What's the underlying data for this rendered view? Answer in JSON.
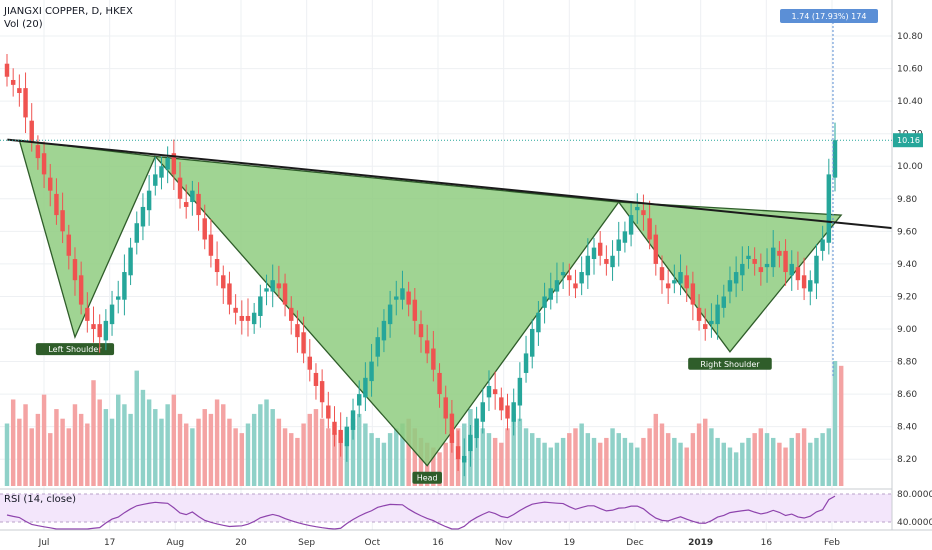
{
  "header": {
    "symbol": "JIANGXI COPPER, D, HKEX",
    "volume_label": "Vol (20)",
    "measure_badge": "1.74 (17.93%) 174",
    "last_price": "10.16"
  },
  "rsi": {
    "label": "RSI (14, close)",
    "levels": [
      "80.0000",
      "40.0000"
    ]
  },
  "colors": {
    "up": "#26a69a",
    "down": "#ef5350",
    "vol_up": "#8fd1c8",
    "vol_down": "#f4a3a3",
    "pattern_fill": "#8fcc80",
    "pattern_stroke": "#2f5d2a",
    "neckline": "#1b1b1b",
    "badge": "#5b8fd6",
    "price_tag": "#26a69a",
    "rsi_bg": "#f3e6fb",
    "rsi_line": "#8e44ad"
  },
  "chart_data": {
    "type": "candlestick",
    "title": "JIANGXI COPPER, D, HKEX",
    "ylim": [
      8.06,
      10.96
    ],
    "y_ticks": [
      "10.80",
      "10.60",
      "10.40",
      "10.20",
      "10.00",
      "9.80",
      "9.60",
      "9.40",
      "9.20",
      "9.00",
      "8.80",
      "8.60",
      "8.40",
      "8.20"
    ],
    "x_ticks": [
      "Jul",
      "17",
      "Aug",
      "20",
      "Sep",
      "Oct",
      "16",
      "Nov",
      "19",
      "Dec",
      "2019",
      "16",
      "Feb"
    ],
    "closes": [
      10.55,
      10.5,
      10.45,
      10.3,
      10.15,
      10.05,
      9.95,
      9.85,
      9.7,
      9.6,
      9.45,
      9.3,
      9.15,
      9.05,
      9.0,
      8.95,
      9.05,
      9.15,
      9.2,
      9.35,
      9.5,
      9.65,
      9.75,
      9.85,
      9.95,
      10.0,
      10.05,
      9.95,
      9.8,
      9.75,
      9.85,
      9.7,
      9.55,
      9.45,
      9.35,
      9.25,
      9.15,
      9.1,
      9.05,
      9.05,
      9.1,
      9.2,
      9.25,
      9.3,
      9.25,
      9.15,
      9.05,
      8.95,
      8.85,
      8.75,
      8.65,
      8.55,
      8.45,
      8.35,
      8.3,
      8.4,
      8.5,
      8.6,
      8.7,
      8.8,
      8.95,
      9.05,
      9.15,
      9.2,
      9.25,
      9.15,
      9.05,
      8.95,
      8.85,
      8.75,
      8.6,
      8.45,
      8.3,
      8.2,
      8.22,
      8.35,
      8.45,
      8.55,
      8.65,
      8.6,
      8.5,
      8.45,
      8.55,
      8.7,
      8.85,
      9.0,
      9.1,
      9.2,
      9.25,
      9.3,
      9.35,
      9.3,
      9.25,
      9.35,
      9.45,
      9.5,
      9.45,
      9.4,
      9.45,
      9.55,
      9.6,
      9.7,
      9.75,
      9.7,
      9.55,
      9.4,
      9.3,
      9.25,
      9.3,
      9.35,
      9.25,
      9.15,
      9.05,
      9.0,
      9.05,
      9.15,
      9.2,
      9.3,
      9.35,
      9.4,
      9.45,
      9.4,
      9.35,
      9.4,
      9.5,
      9.45,
      9.35,
      9.4,
      9.3,
      9.25,
      9.3,
      9.45,
      9.55,
      9.95,
      10.16
    ],
    "volumes": [
      65,
      90,
      70,
      85,
      60,
      75,
      95,
      55,
      80,
      70,
      60,
      85,
      75,
      65,
      110,
      90,
      80,
      70,
      95,
      85,
      75,
      120,
      100,
      90,
      80,
      70,
      85,
      95,
      75,
      65,
      60,
      70,
      80,
      75,
      90,
      85,
      70,
      60,
      55,
      65,
      75,
      85,
      90,
      80,
      70,
      60,
      55,
      50,
      65,
      75,
      80,
      70,
      60,
      55,
      50,
      60,
      70,
      75,
      65,
      55,
      50,
      45,
      55,
      60,
      65,
      70,
      60,
      50,
      45,
      40,
      35,
      45,
      55,
      60,
      65,
      80,
      70,
      60,
      55,
      50,
      45,
      60,
      75,
      70,
      60,
      55,
      50,
      45,
      40,
      45,
      50,
      55,
      60,
      65,
      55,
      50,
      45,
      50,
      60,
      55,
      50,
      45,
      40,
      50,
      60,
      75,
      65,
      55,
      50,
      45,
      40,
      55,
      65,
      70,
      60,
      50,
      45,
      40,
      35,
      45,
      50,
      55,
      60,
      55,
      50,
      45,
      40,
      50,
      55,
      60,
      45,
      50,
      55,
      60,
      130,
      125
    ],
    "pattern_labels": [
      "Left Shoulder",
      "Head",
      "Right Shoulder"
    ],
    "pattern_points": [
      {
        "bar": 2,
        "price": 10.16
      },
      {
        "bar": 11,
        "price": 8.95
      },
      {
        "bar": 24,
        "price": 10.06
      },
      {
        "bar": 68,
        "price": 8.16
      },
      {
        "bar": 99,
        "price": 9.78
      },
      {
        "bar": 117,
        "price": 8.86
      },
      {
        "bar": 135,
        "price": 9.7
      }
    ],
    "neckline": [
      {
        "bar": 2,
        "price": 10.16
      },
      {
        "bar": 141,
        "price": 9.62
      }
    ]
  }
}
